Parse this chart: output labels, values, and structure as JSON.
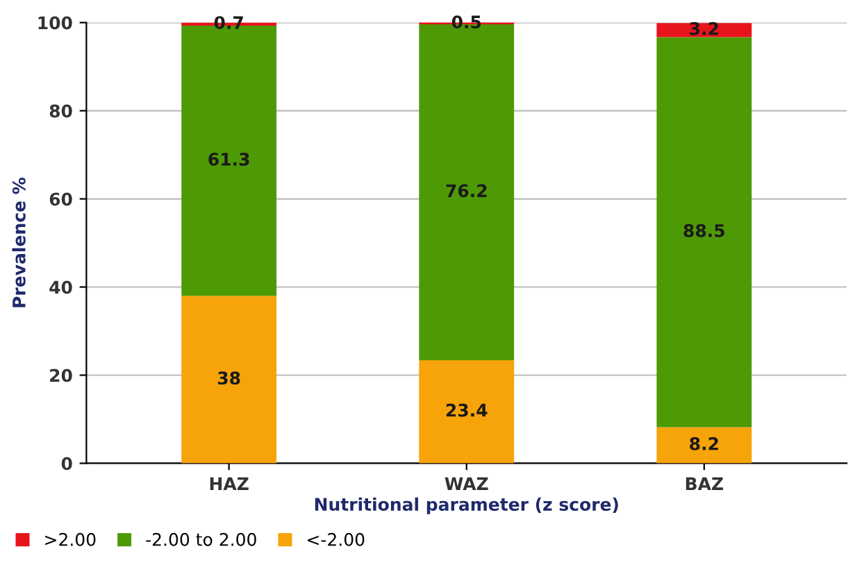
{
  "chart_data": {
    "type": "bar",
    "stacked": true,
    "xlabel": "Nutritional parameter (z score)",
    "ylabel": "Prevalence %",
    "categories": [
      "HAZ",
      "WAZ",
      "BAZ"
    ],
    "series": [
      {
        "name": "<-2.00",
        "color": "#f7a30a",
        "values": [
          38,
          23.4,
          8.2
        ]
      },
      {
        "name": "-2.00 to 2.00",
        "color": "#4e9a06",
        "values": [
          61.3,
          76.2,
          88.5
        ]
      },
      {
        "name": ">2.00",
        "color": "#e8141c",
        "values": [
          0.7,
          0.5,
          3.2
        ]
      }
    ],
    "ylim": [
      0,
      100
    ],
    "yticks": [
      0,
      20,
      40,
      60,
      80,
      100
    ],
    "grid": "y",
    "legend": "bottom left",
    "data_labels": true
  }
}
